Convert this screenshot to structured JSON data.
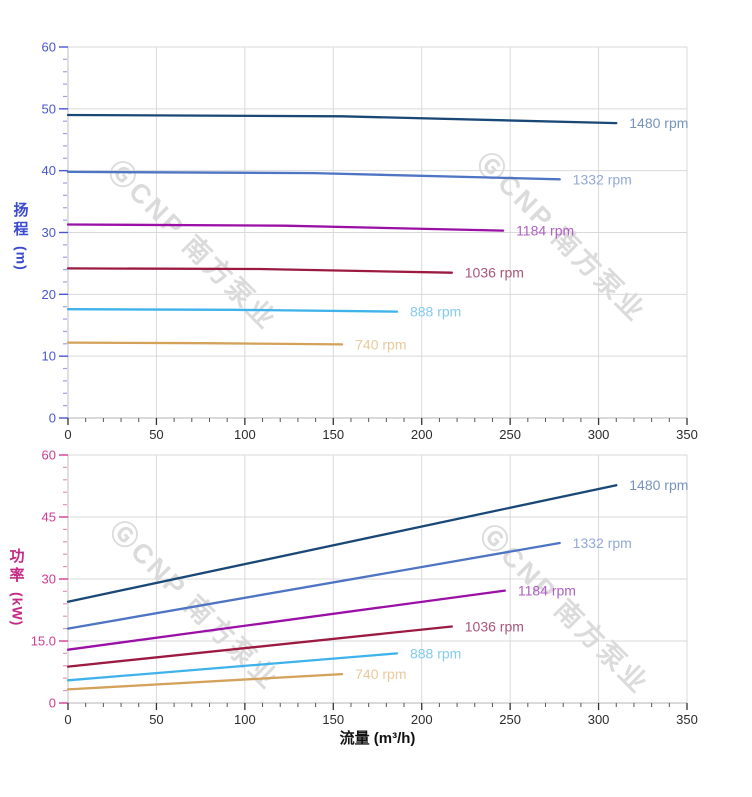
{
  "page": {
    "background": "#ffffff"
  },
  "watermark": {
    "text": "ⒼCNP 南方泵业",
    "color": "#dbdbdb"
  },
  "axes_titles": {
    "head": {
      "chars": "扬程",
      "unit": "(m)",
      "color": "#3a49cf"
    },
    "power": {
      "chars": "功率",
      "unit": "(kW)",
      "color": "#c22a85"
    },
    "flow": "流量 (m³/h)"
  },
  "chart_data": [
    {
      "type": "line",
      "name": "head-vs-flow",
      "title": "",
      "xlabel": "",
      "ylabel": "扬程 (m)",
      "xlim": [
        0,
        350
      ],
      "ylim": [
        0,
        60
      ],
      "grid": true,
      "grid_color": "#d9d9d9",
      "legend": "line-end",
      "axis_color": "#4956d2",
      "x_tick_color": "#2b2b2b",
      "x_ticks": {
        "values": [
          0,
          50,
          100,
          150,
          200,
          250,
          300,
          350
        ],
        "labels": [
          "0",
          "50",
          "100",
          "150",
          "200",
          "250",
          "300",
          "350"
        ],
        "minor_step": 10
      },
      "y_ticks": {
        "values": [
          0,
          10,
          20,
          30,
          40,
          50,
          60
        ],
        "labels": [
          "0",
          "10",
          "20",
          "30",
          "40",
          "50",
          "60"
        ],
        "minor_step": 2
      },
      "series": [
        {
          "name": "1480 rpm",
          "color": "#1a4876",
          "label_color": "#7593bb",
          "points": [
            [
              0,
              49.0
            ],
            [
              155,
              48.8
            ],
            [
              310,
              47.7
            ]
          ]
        },
        {
          "name": "1332 rpm",
          "color": "#4e74c4",
          "label_color": "#92a8da",
          "points": [
            [
              0,
              39.8
            ],
            [
              139,
              39.6
            ],
            [
              278,
              38.6
            ]
          ]
        },
        {
          "name": "1184 rpm",
          "color": "#9a0fa5",
          "label_color": "#b05fc2",
          "points": [
            [
              0,
              31.3
            ],
            [
              123,
              31.1
            ],
            [
              246,
              30.3
            ]
          ]
        },
        {
          "name": "1036 rpm",
          "color": "#9c1a40",
          "label_color": "#aa5576",
          "points": [
            [
              0,
              24.2
            ],
            [
              108,
              24.1
            ],
            [
              217,
              23.5
            ]
          ]
        },
        {
          "name": "888 rpm",
          "color": "#3eb2ea",
          "label_color": "#83cbf2",
          "points": [
            [
              0,
              17.6
            ],
            [
              93,
              17.5
            ],
            [
              186,
              17.2
            ]
          ]
        },
        {
          "name": "740 rpm",
          "color": "#d3a159",
          "label_color": "#e9c89c",
          "points": [
            [
              0,
              12.2
            ],
            [
              77,
              12.1
            ],
            [
              155,
              11.9
            ]
          ]
        }
      ]
    },
    {
      "type": "line",
      "name": "power-vs-flow",
      "title": "",
      "xlabel": "流量 (m³/h)",
      "ylabel": "功率 (kW)",
      "xlim": [
        0,
        350
      ],
      "ylim": [
        0,
        60
      ],
      "grid": true,
      "grid_color": "#d9d9d9",
      "legend": "line-end",
      "axis_color": "#cf3d92",
      "x_tick_color": "#2b2b2b",
      "x_ticks": {
        "values": [
          0,
          50,
          100,
          150,
          200,
          250,
          300,
          350
        ],
        "labels": [
          "0",
          "50",
          "100",
          "150",
          "200",
          "250",
          "300",
          "350"
        ],
        "minor_step": 10
      },
      "y_ticks": {
        "values": [
          0,
          15,
          30,
          45,
          60
        ],
        "labels": [
          "0",
          "15.0",
          "30",
          "45",
          "60"
        ],
        "minor_step": 3
      },
      "series": [
        {
          "name": "1480 rpm",
          "color": "#1a4876",
          "label_color": "#7593bb",
          "points": [
            [
              0,
              24.5
            ],
            [
              310,
              52.7
            ]
          ]
        },
        {
          "name": "1332 rpm",
          "color": "#4e74c4",
          "label_color": "#92a8da",
          "points": [
            [
              0,
              18.0
            ],
            [
              278,
              38.7
            ]
          ]
        },
        {
          "name": "1184 rpm",
          "color": "#9a0fa5",
          "label_color": "#b05fc2",
          "points": [
            [
              0,
              12.9
            ],
            [
              247,
              27.2
            ]
          ]
        },
        {
          "name": "1036 rpm",
          "color": "#9c1a40",
          "label_color": "#aa5576",
          "points": [
            [
              0,
              8.8
            ],
            [
              217,
              18.5
            ]
          ]
        },
        {
          "name": "888 rpm",
          "color": "#3eb2ea",
          "label_color": "#83cbf2",
          "points": [
            [
              0,
              5.5
            ],
            [
              186,
              12.0
            ]
          ]
        },
        {
          "name": "740 rpm",
          "color": "#d3a159",
          "label_color": "#e9c89c",
          "points": [
            [
              0,
              3.3
            ],
            [
              155,
              7.0
            ]
          ]
        }
      ]
    }
  ]
}
